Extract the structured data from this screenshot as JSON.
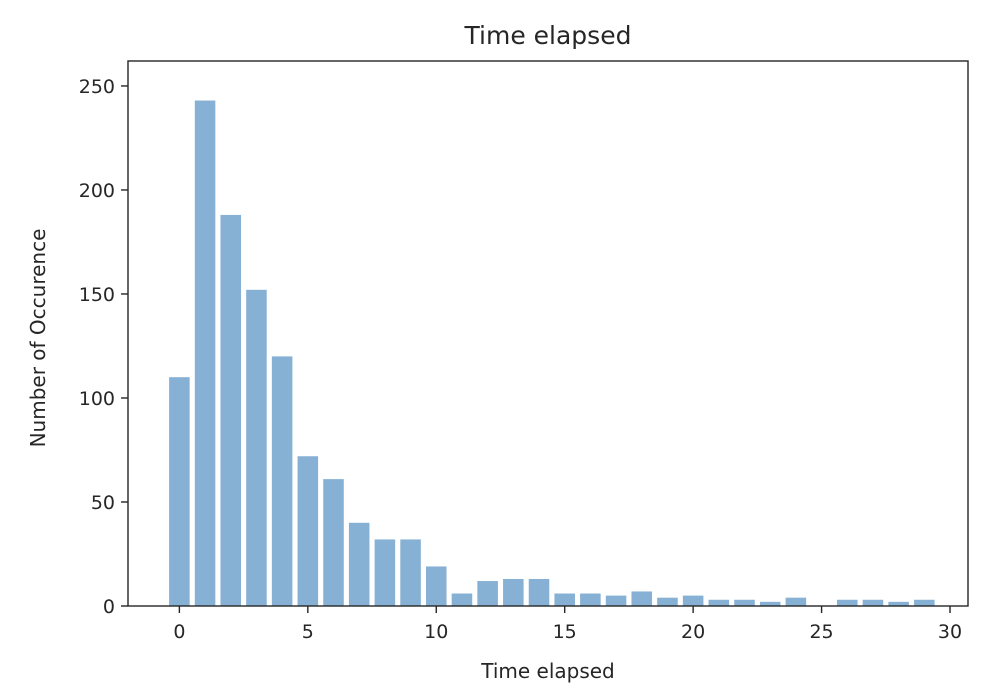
{
  "chart_data": {
    "type": "bar",
    "title": "Time elapsed",
    "xlabel": "Time elapsed",
    "ylabel": "Number of Occurence",
    "xlim": [
      -2,
      30.7
    ],
    "ylim": [
      0,
      262
    ],
    "xticks": [
      0,
      5,
      10,
      15,
      20,
      25,
      30
    ],
    "yticks": [
      0,
      50,
      100,
      150,
      200,
      250
    ],
    "x": [
      0,
      1,
      2,
      3,
      4,
      5,
      6,
      7,
      8,
      9,
      10,
      11,
      12,
      13,
      14,
      15,
      16,
      17,
      18,
      19,
      20,
      21,
      22,
      23,
      24,
      25,
      26,
      27,
      28,
      29
    ],
    "values": [
      110,
      243,
      188,
      152,
      120,
      72,
      61,
      40,
      32,
      32,
      19,
      6,
      12,
      13,
      13,
      6,
      6,
      5,
      7,
      4,
      5,
      3,
      3,
      2,
      4,
      0,
      3,
      3,
      2,
      3
    ],
    "bar_color": "#86b1d4",
    "grid": false,
    "legend": "none"
  }
}
